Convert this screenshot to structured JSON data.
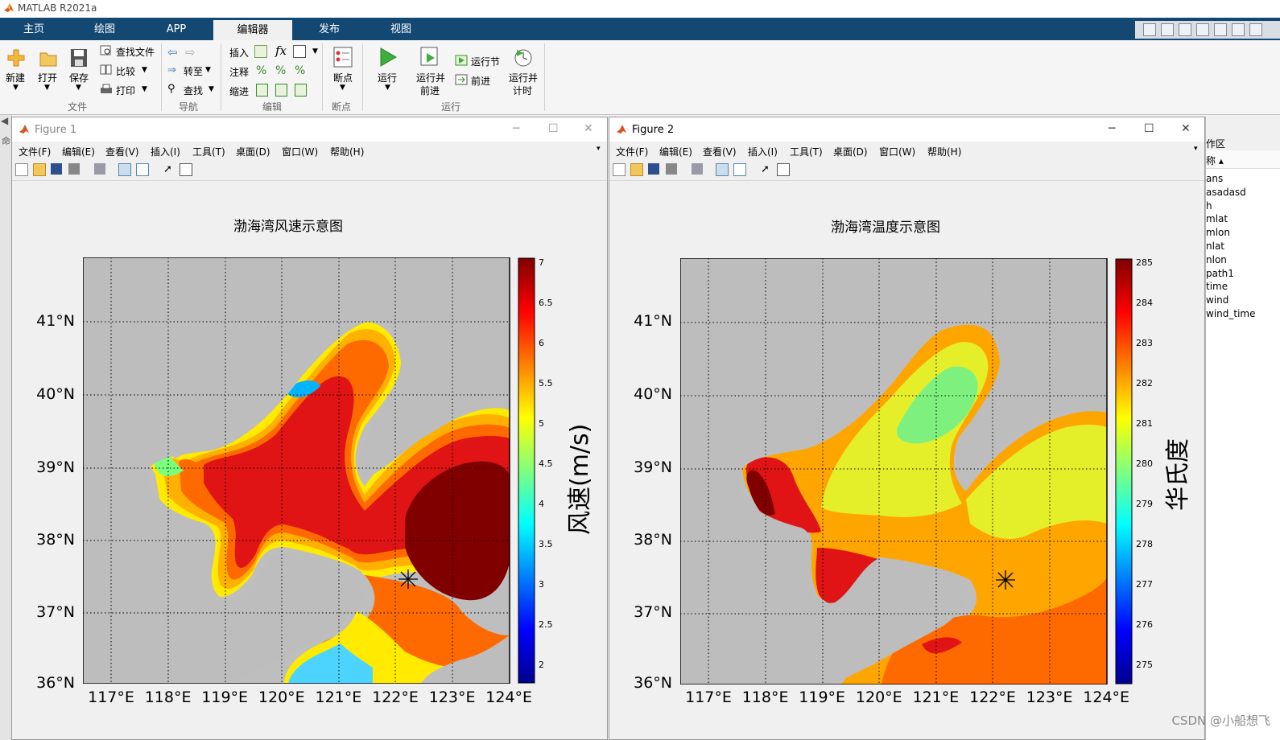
{
  "app": {
    "title": "MATLAB R2021a"
  },
  "tabs": [
    {
      "label": "主页"
    },
    {
      "label": "绘图"
    },
    {
      "label": "APP"
    },
    {
      "label": "编辑器"
    },
    {
      "label": "发布"
    },
    {
      "label": "视图"
    }
  ],
  "active_tab": "编辑器",
  "ribbon": {
    "file": {
      "new": "新建",
      "open": "打开",
      "save": "保存",
      "find_files": "查找文件",
      "compare": "比较",
      "print": "打印",
      "group": "文件"
    },
    "nav": {
      "goto": "转至",
      "find": "查找",
      "group": "导航"
    },
    "edit": {
      "insert": "插入",
      "comment": "注释",
      "indent": "缩进",
      "group": "编辑"
    },
    "breakpoints": {
      "label": "断点",
      "group": "断点"
    },
    "run": {
      "run": "运行",
      "run_advance_1": "运行并",
      "run_advance_2": "前进",
      "run_section": "运行节",
      "advance": "前进",
      "run_time_1": "运行并",
      "run_time_2": "计时",
      "group": "运行"
    }
  },
  "figures": [
    {
      "window_title": "Figure 1",
      "menu": [
        "文件(F)",
        "编辑(E)",
        "查看(V)",
        "插入(I)",
        "工具(T)",
        "桌面(D)",
        "窗口(W)",
        "帮助(H)"
      ],
      "plot_title": "渤海湾风速示意图",
      "y_ticks": [
        "41°N",
        "40°N",
        "39°N",
        "38°N",
        "37°N",
        "36°N"
      ],
      "x_ticks": [
        "117°E",
        "118°E",
        "119°E",
        "120°E",
        "121°E",
        "122°E",
        "123°E",
        "124°E"
      ],
      "colorbar_ticks": [
        "7",
        "6.5",
        "6",
        "5.5",
        "5",
        "4.5",
        "4",
        "3.5",
        "3",
        "2.5",
        "2"
      ],
      "colorbar_label": "风速(m/s)",
      "colors": {
        "ocean": "#bebebe",
        "land": "#bdbdbd"
      }
    },
    {
      "window_title": "Figure 2",
      "menu": [
        "文件(F)",
        "编辑(E)",
        "查看(V)",
        "插入(I)",
        "工具(T)",
        "桌面(D)",
        "窗口(W)",
        "帮助(H)"
      ],
      "plot_title": "渤海湾温度示意图",
      "y_ticks": [
        "41°N",
        "40°N",
        "39°N",
        "38°N",
        "37°N",
        "36°N"
      ],
      "x_ticks": [
        "117°E",
        "118°E",
        "119°E",
        "120°E",
        "121°E",
        "122°E",
        "123°E",
        "124°E"
      ],
      "colorbar_ticks": [
        "285",
        "284",
        "283",
        "282",
        "281",
        "280",
        "279",
        "278",
        "277",
        "276",
        "275"
      ],
      "colorbar_label": "华氏度",
      "colors": {
        "ocean": "#bebebe",
        "land": "#bdbdbd"
      }
    }
  ],
  "workspace": {
    "header": "作区",
    "name_col": "称 ▴",
    "variables": [
      "ans",
      "asadasd",
      "h",
      "mlat",
      "mlon",
      "nlat",
      "nlon",
      "path1",
      "time",
      "wind",
      "wind_time"
    ]
  },
  "watermark": "CSDN @小船想飞",
  "left_strip_label": "命"
}
